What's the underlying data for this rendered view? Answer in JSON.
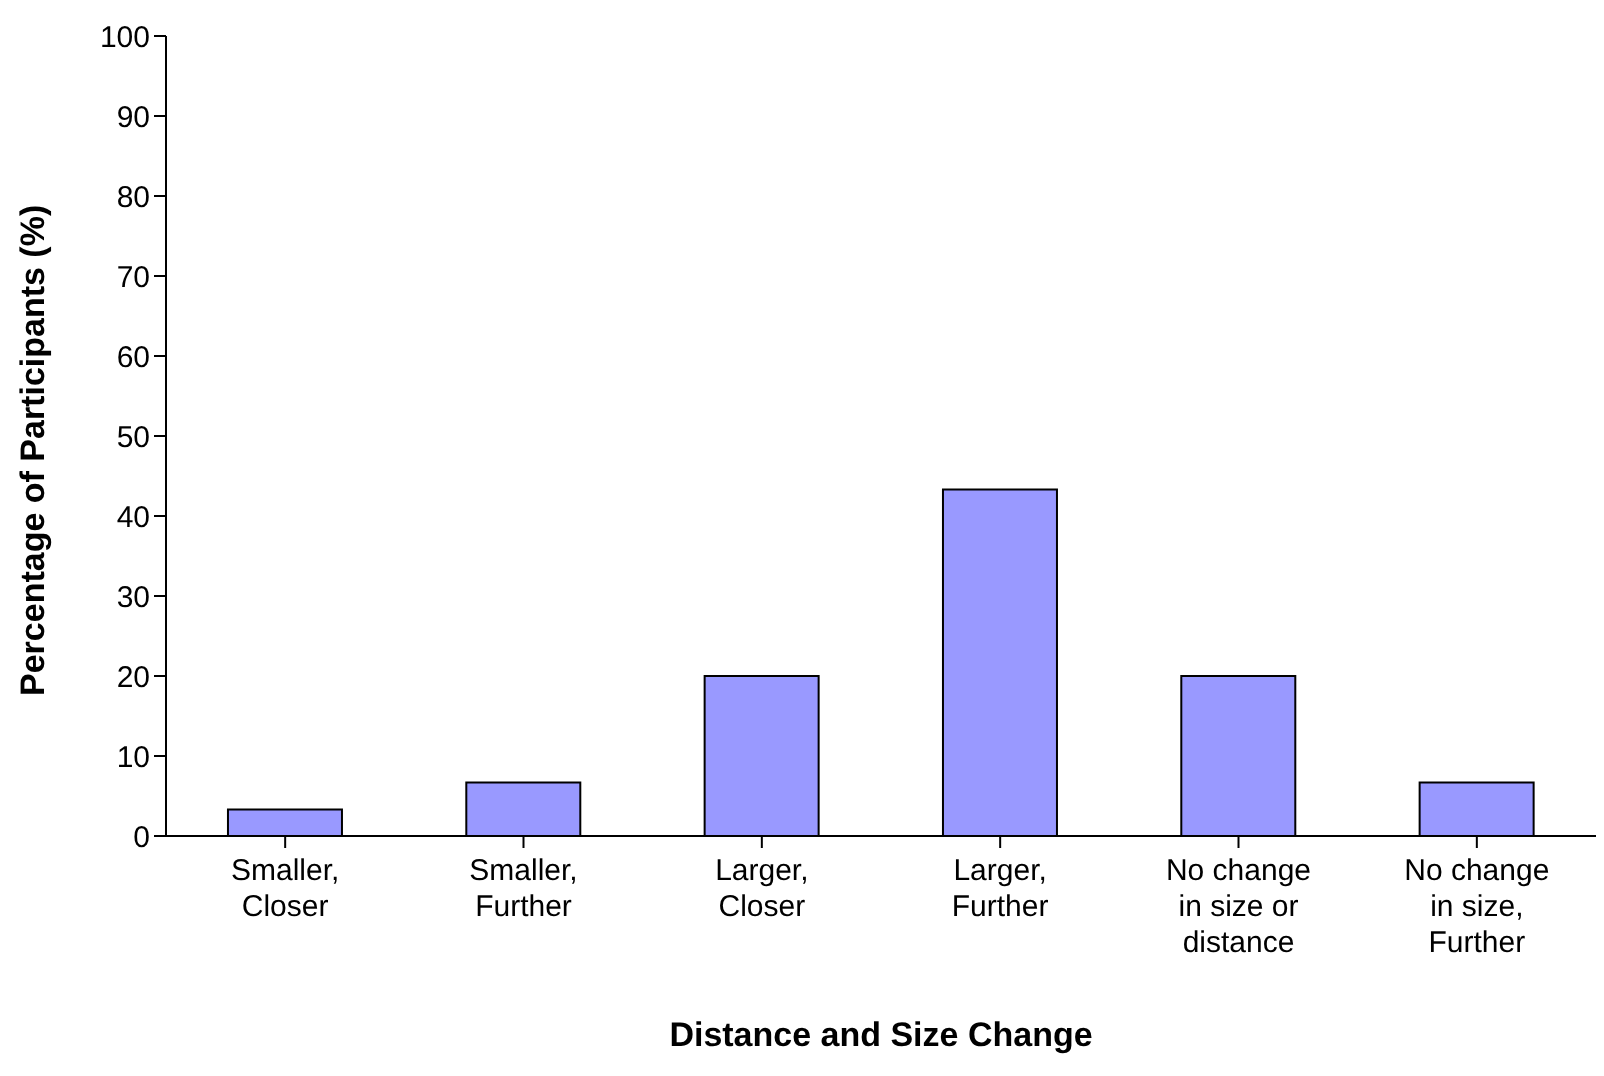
{
  "chart_data": {
    "type": "bar",
    "xlabel": "Distance and Size Change",
    "ylabel": "Percentage of Participants (%)",
    "categories": [
      "Smaller, Closer",
      "Smaller, Further",
      "Larger, Closer",
      "Larger, Further",
      "No change in size or distance",
      "No change in size, Further"
    ],
    "values": [
      3.3,
      6.7,
      20,
      43.3,
      20,
      6.7
    ],
    "color": "#9999ff",
    "ylim": [
      0,
      100
    ],
    "yticks": [
      0,
      10,
      20,
      30,
      40,
      50,
      60,
      70,
      80,
      90,
      100
    ],
    "grid": false,
    "legend": false
  }
}
